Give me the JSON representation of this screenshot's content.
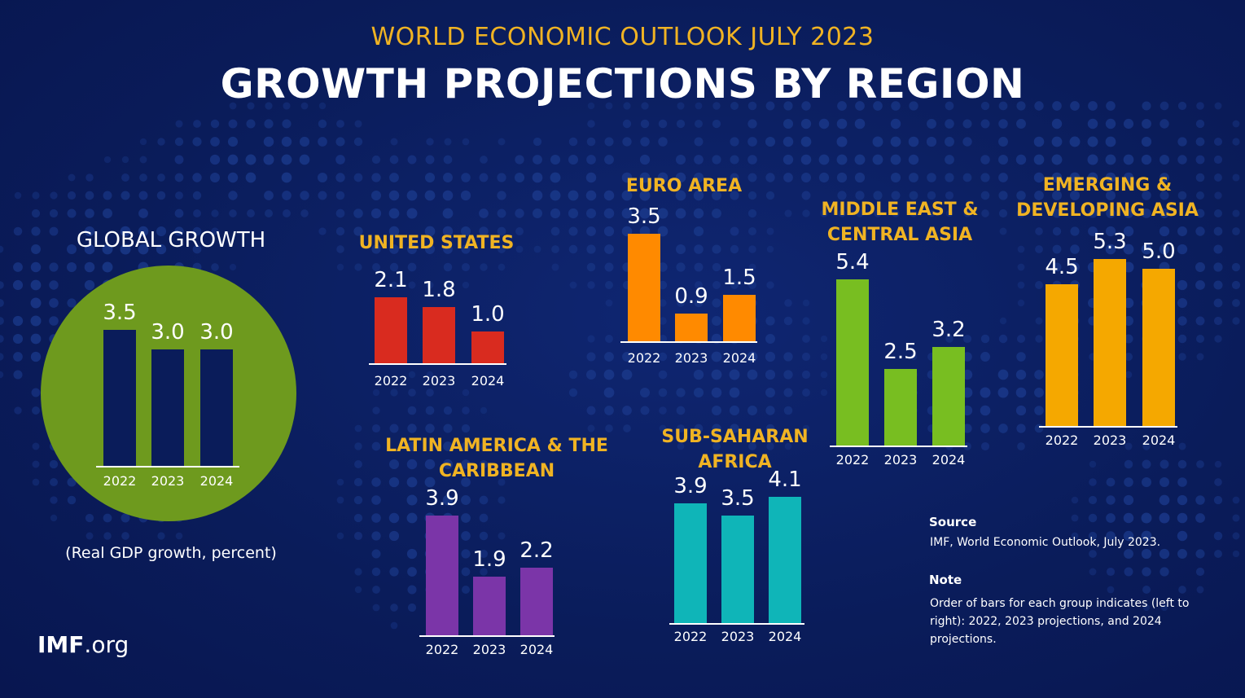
{
  "header": {
    "supertitle": "WORLD ECONOMIC OUTLOOK JULY 2023",
    "title": "GROWTH PROJECTIONS BY REGION"
  },
  "global": {
    "title": "GLOBAL GROWTH",
    "subtitle": "(Real GDP growth, percent)"
  },
  "logo": {
    "bold": "IMF",
    "rest": ".org"
  },
  "source": {
    "heading": "Source",
    "text": "IMF, World Economic Outlook, July 2023."
  },
  "note": {
    "heading": "Note",
    "text": "Order of bars for each group indicates (left to right): 2022, 2023 projections, and 2024 projections."
  },
  "colors": {
    "background": "#0a1c5a",
    "title_accent": "#f0b323",
    "global_circle": "#6e9a1e",
    "global_bars": "#0a1c5a"
  },
  "chart_data": [
    {
      "type": "bar",
      "id": "global",
      "title": "GLOBAL GROWTH",
      "categories": [
        "2022",
        "2023",
        "2024"
      ],
      "values": [
        3.5,
        3.0,
        3.0
      ],
      "labels": [
        "3.5",
        "3.0",
        "3.0"
      ],
      "color": "#0a1c5a"
    },
    {
      "type": "bar",
      "id": "us",
      "title": "UNITED STATES",
      "categories": [
        "2022",
        "2023",
        "2024"
      ],
      "values": [
        2.1,
        1.8,
        1.0
      ],
      "labels": [
        "2.1",
        "1.8",
        "1.0"
      ],
      "color": "#d92b1f"
    },
    {
      "type": "bar",
      "id": "euro",
      "title": "EURO AREA",
      "categories": [
        "2022",
        "2023",
        "2024"
      ],
      "values": [
        3.5,
        0.9,
        1.5
      ],
      "labels": [
        "3.5",
        "0.9",
        "1.5"
      ],
      "color": "#ff8a00"
    },
    {
      "type": "bar",
      "id": "latam",
      "title": "LATIN AMERICA & THE CARIBBEAN",
      "categories": [
        "2022",
        "2023",
        "2024"
      ],
      "values": [
        3.9,
        1.9,
        2.2
      ],
      "labels": [
        "3.9",
        "1.9",
        "2.2"
      ],
      "color": "#7b35a8"
    },
    {
      "type": "bar",
      "id": "ssa",
      "title": "SUB-SAHARAN AFRICA",
      "categories": [
        "2022",
        "2023",
        "2024"
      ],
      "values": [
        3.9,
        3.5,
        4.1
      ],
      "labels": [
        "3.9",
        "3.5",
        "4.1"
      ],
      "color": "#0fb5b8"
    },
    {
      "type": "bar",
      "id": "meca",
      "title": "MIDDLE EAST & CENTRAL ASIA",
      "categories": [
        "2022",
        "2023",
        "2024"
      ],
      "values": [
        5.4,
        2.5,
        3.2
      ],
      "labels": [
        "5.4",
        "2.5",
        "3.2"
      ],
      "color": "#78be21"
    },
    {
      "type": "bar",
      "id": "eda",
      "title": "EMERGING & DEVELOPING ASIA",
      "categories": [
        "2022",
        "2023",
        "2024"
      ],
      "values": [
        4.5,
        5.3,
        5.0
      ],
      "labels": [
        "4.5",
        "5.3",
        "5.0"
      ],
      "color": "#f5a800"
    }
  ]
}
